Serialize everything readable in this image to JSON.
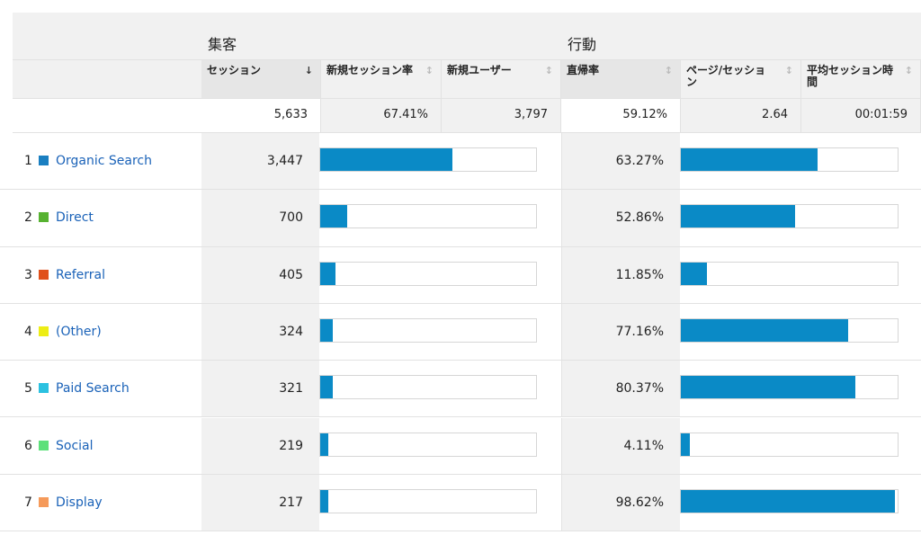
{
  "groups": {
    "acquisition": "集客",
    "behavior": "行動"
  },
  "columns": [
    {
      "label": "セッション",
      "sort_active": true
    },
    {
      "label": "新規セッション率",
      "sort_active": false
    },
    {
      "label": "新規ユーザー",
      "sort_active": false
    },
    {
      "label": "直帰率",
      "sort_active": false
    },
    {
      "label": "ページ/セッション",
      "sort_active": false
    },
    {
      "label": "平均セッション時間",
      "sort_active": false
    }
  ],
  "totals": [
    "5,633",
    "67.41%",
    "3,797",
    "59.12%",
    "2.64",
    "00:01:59"
  ],
  "rows": [
    {
      "index": "1",
      "name": "Organic Search",
      "color": "#1a7fc1",
      "sessions": "3,447",
      "sessions_share": 0.612,
      "bounce": "63.27%",
      "bounce_ratio": 0.6327
    },
    {
      "index": "2",
      "name": "Direct",
      "color": "#57b231",
      "sessions": "700",
      "sessions_share": 0.124,
      "bounce": "52.86%",
      "bounce_ratio": 0.5286
    },
    {
      "index": "3",
      "name": "Referral",
      "color": "#e0501b",
      "sessions": "405",
      "sessions_share": 0.072,
      "bounce": "11.85%",
      "bounce_ratio": 0.1185
    },
    {
      "index": "4",
      "name": "(Other)",
      "color": "#eded15",
      "sessions": "324",
      "sessions_share": 0.058,
      "bounce": "77.16%",
      "bounce_ratio": 0.7716
    },
    {
      "index": "5",
      "name": "Paid Search",
      "color": "#2bc1e0",
      "sessions": "321",
      "sessions_share": 0.057,
      "bounce": "80.37%",
      "bounce_ratio": 0.8037
    },
    {
      "index": "6",
      "name": "Social",
      "color": "#5de07a",
      "sessions": "219",
      "sessions_share": 0.039,
      "bounce": "4.11%",
      "bounce_ratio": 0.0411
    },
    {
      "index": "7",
      "name": "Display",
      "color": "#f59a5a",
      "sessions": "217",
      "sessions_share": 0.039,
      "bounce": "98.62%",
      "bounce_ratio": 0.9862
    }
  ]
}
